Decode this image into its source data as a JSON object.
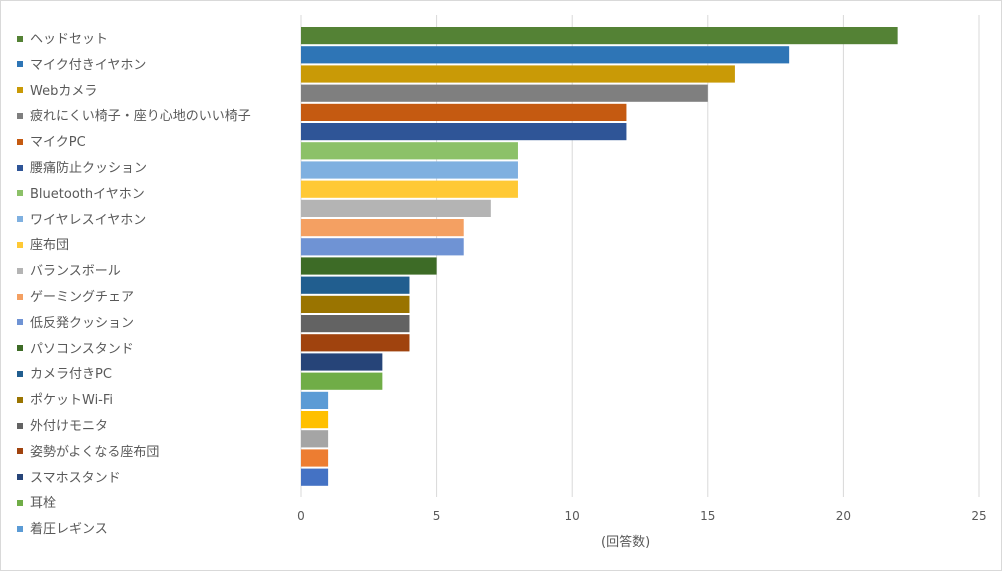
{
  "chart_data": {
    "type": "bar",
    "orientation": "horizontal",
    "xlabel": "(回答数)",
    "xlim": [
      0,
      25
    ],
    "xticks": [
      0,
      5,
      10,
      15,
      20,
      25
    ],
    "grid": true,
    "legend_position": "left",
    "series": [
      {
        "name": "ヘッドセット",
        "value": 22,
        "color": "#548235"
      },
      {
        "name": "マイク付きイヤホン",
        "value": 18,
        "color": "#2e75b6"
      },
      {
        "name": "Webカメラ",
        "value": 16,
        "color": "#c99a06"
      },
      {
        "name": "疲れにくい椅子・座り心地のいい椅子",
        "value": 15,
        "color": "#7f7f7f"
      },
      {
        "name": "マイクPC",
        "value": 12,
        "color": "#c55a11"
      },
      {
        "name": "腰痛防止クッション",
        "value": 12,
        "color": "#2f5597"
      },
      {
        "name": "Bluetoothイヤホン",
        "value": 8,
        "color": "#8cc168"
      },
      {
        "name": "ワイヤレスイヤホン",
        "value": 8,
        "color": "#7fb0e0"
      },
      {
        "name": "座布団",
        "value": 8,
        "color": "#ffc935"
      },
      {
        "name": "バランスボール",
        "value": 7,
        "color": "#b4b4b4"
      },
      {
        "name": "ゲーミングチェア",
        "value": 6,
        "color": "#f4a062"
      },
      {
        "name": "低反発クッション",
        "value": 6,
        "color": "#6f93d4"
      },
      {
        "name": "パソコンスタンド",
        "value": 5,
        "color": "#3d6b26"
      },
      {
        "name": "カメラ付きPC",
        "value": 4,
        "color": "#215e8f"
      },
      {
        "name": "ポケットWi-Fi",
        "value": 4,
        "color": "#9a7400"
      },
      {
        "name": "外付けモニタ",
        "value": 4,
        "color": "#636363"
      },
      {
        "name": "姿勢がよくなる座布団",
        "value": 4,
        "color": "#a0430e"
      },
      {
        "name": "スマホスタンド",
        "value": 3,
        "color": "#264478"
      },
      {
        "name": "耳栓",
        "value": 3,
        "color": "#70ad47"
      },
      {
        "name": "着圧レギンス",
        "value": 1,
        "color": "#5b9bd5"
      },
      {
        "value": 1,
        "color": "#ffc000"
      },
      {
        "value": 1,
        "color": "#a5a5a5"
      },
      {
        "value": 1,
        "color": "#ed7d31"
      },
      {
        "value": 1,
        "color": "#4472c4"
      }
    ]
  }
}
